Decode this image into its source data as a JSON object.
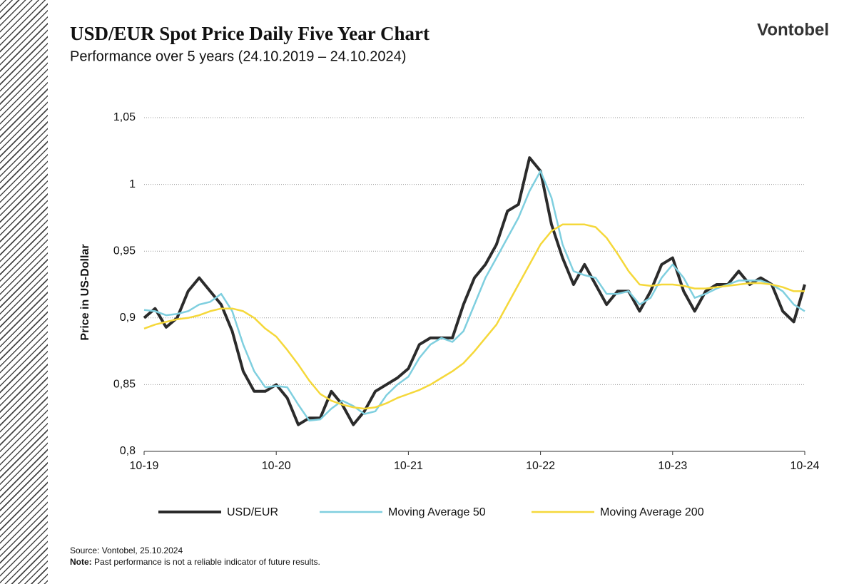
{
  "brand": "Vontobel",
  "chart_data": {
    "type": "line",
    "title": "USD/EUR Spot Price Daily Five Year Chart",
    "subtitle": "Performance over 5 years (24.10.2019 – 24.10.2024)",
    "y_label": "Price in US-Dollar",
    "x": [
      "2019-10",
      "2019-11",
      "2019-12",
      "2020-01",
      "2020-02",
      "2020-03",
      "2020-04",
      "2020-05",
      "2020-06",
      "2020-07",
      "2020-08",
      "2020-09",
      "2020-10",
      "2020-11",
      "2020-12",
      "2021-01",
      "2021-02",
      "2021-03",
      "2021-04",
      "2021-05",
      "2021-06",
      "2021-07",
      "2021-08",
      "2021-09",
      "2021-10",
      "2021-11",
      "2021-12",
      "2022-01",
      "2022-02",
      "2022-03",
      "2022-04",
      "2022-05",
      "2022-06",
      "2022-07",
      "2022-08",
      "2022-09",
      "2022-10",
      "2022-11",
      "2022-12",
      "2023-01",
      "2023-02",
      "2023-03",
      "2023-04",
      "2023-05",
      "2023-06",
      "2023-07",
      "2023-08",
      "2023-09",
      "2023-10",
      "2023-11",
      "2023-12",
      "2024-01",
      "2024-02",
      "2024-03",
      "2024-04",
      "2024-05",
      "2024-06",
      "2024-07",
      "2024-08",
      "2024-09",
      "2024-10"
    ],
    "series": [
      {
        "name": "USD/EUR",
        "color": "#2b2b2b",
        "width": 4,
        "values": [
          0.9,
          0.907,
          0.893,
          0.9,
          0.92,
          0.93,
          0.92,
          0.91,
          0.89,
          0.86,
          0.845,
          0.845,
          0.85,
          0.84,
          0.82,
          0.825,
          0.825,
          0.845,
          0.835,
          0.82,
          0.83,
          0.845,
          0.85,
          0.855,
          0.862,
          0.88,
          0.885,
          0.885,
          0.885,
          0.91,
          0.93,
          0.94,
          0.955,
          0.98,
          0.985,
          1.02,
          1.01,
          0.97,
          0.945,
          0.925,
          0.94,
          0.925,
          0.91,
          0.92,
          0.92,
          0.905,
          0.92,
          0.94,
          0.945,
          0.92,
          0.905,
          0.92,
          0.925,
          0.925,
          0.935,
          0.925,
          0.93,
          0.925,
          0.905,
          0.897,
          0.925
        ]
      },
      {
        "name": "Moving Average 50",
        "color": "#7fcfdf",
        "width": 2.5,
        "values": [
          0.906,
          0.905,
          0.902,
          0.903,
          0.905,
          0.91,
          0.912,
          0.918,
          0.905,
          0.88,
          0.86,
          0.848,
          0.849,
          0.848,
          0.835,
          0.823,
          0.824,
          0.832,
          0.838,
          0.834,
          0.828,
          0.83,
          0.842,
          0.85,
          0.856,
          0.87,
          0.88,
          0.885,
          0.882,
          0.89,
          0.91,
          0.93,
          0.945,
          0.96,
          0.975,
          0.995,
          1.01,
          0.99,
          0.955,
          0.935,
          0.932,
          0.93,
          0.918,
          0.918,
          0.92,
          0.91,
          0.915,
          0.93,
          0.94,
          0.93,
          0.915,
          0.918,
          0.922,
          0.925,
          0.928,
          0.928,
          0.928,
          0.925,
          0.92,
          0.91,
          0.905
        ]
      },
      {
        "name": "Moving Average 200",
        "color": "#f5d83a",
        "width": 2.5,
        "values": [
          0.892,
          0.895,
          0.897,
          0.899,
          0.9,
          0.902,
          0.905,
          0.907,
          0.907,
          0.905,
          0.9,
          0.892,
          0.886,
          0.876,
          0.865,
          0.853,
          0.843,
          0.838,
          0.835,
          0.833,
          0.832,
          0.833,
          0.836,
          0.84,
          0.843,
          0.846,
          0.85,
          0.855,
          0.86,
          0.866,
          0.875,
          0.885,
          0.895,
          0.91,
          0.925,
          0.94,
          0.955,
          0.965,
          0.97,
          0.97,
          0.97,
          0.968,
          0.96,
          0.948,
          0.935,
          0.925,
          0.924,
          0.925,
          0.925,
          0.924,
          0.922,
          0.922,
          0.923,
          0.924,
          0.925,
          0.926,
          0.926,
          0.925,
          0.923,
          0.92,
          0.92
        ]
      }
    ],
    "xlim": [
      "2019-10",
      "2024-10"
    ],
    "xticks": [
      {
        "value": "2019-10",
        "label": "10-19"
      },
      {
        "value": "2020-10",
        "label": "10-20"
      },
      {
        "value": "2021-10",
        "label": "10-21"
      },
      {
        "value": "2022-10",
        "label": "10-22"
      },
      {
        "value": "2023-10",
        "label": "10-23"
      },
      {
        "value": "2024-10",
        "label": "10-24"
      }
    ],
    "ylim": [
      0.8,
      1.05
    ],
    "yticks": [
      {
        "value": 0.8,
        "label": "0,8"
      },
      {
        "value": 0.85,
        "label": "0,85"
      },
      {
        "value": 0.9,
        "label": "0,9"
      },
      {
        "value": 0.95,
        "label": "0,95"
      },
      1,
      {
        "value": 1.05,
        "label": "1,05"
      }
    ],
    "grid": true,
    "legend": "bottom",
    "source": "Source: Vontobel, 25.10.2024",
    "note_label": "Note:",
    "note_text": "Past performance is not a reliable indicator of future results."
  }
}
